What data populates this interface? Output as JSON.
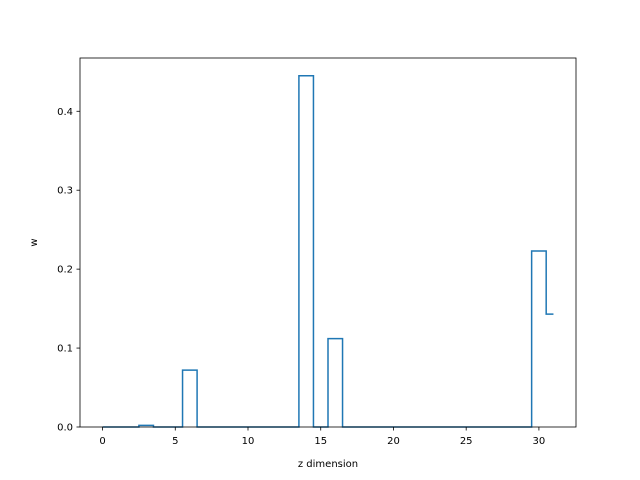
{
  "chart_data": {
    "type": "line",
    "drawstyle": "steps-mid",
    "xlabel": "z dimension",
    "ylabel": "w",
    "xlim": [
      -1.55,
      32.55
    ],
    "ylim": [
      0,
      0.4675
    ],
    "x_ticks": [
      0,
      5,
      10,
      15,
      20,
      25,
      30
    ],
    "y_ticks": [
      0.0,
      0.1,
      0.2,
      0.3,
      0.4
    ],
    "y_tick_labels": [
      "0.0",
      "0.1",
      "0.2",
      "0.3",
      "0.4"
    ],
    "grid": false,
    "series": [
      {
        "color": "#1f77b4",
        "x": [
          0,
          1,
          2,
          3,
          4,
          5,
          6,
          7,
          8,
          9,
          10,
          11,
          12,
          13,
          14,
          15,
          16,
          17,
          18,
          19,
          20,
          21,
          22,
          23,
          24,
          25,
          26,
          27,
          28,
          29,
          30,
          31
        ],
        "y": [
          0,
          0,
          0,
          0.002,
          0,
          0,
          0.072,
          0,
          0,
          0,
          0,
          0,
          0,
          0,
          0.445,
          0,
          0.112,
          0,
          0,
          0,
          0,
          0,
          0,
          0,
          0,
          0,
          0,
          0,
          0,
          0,
          0.223,
          0.143
        ]
      }
    ]
  }
}
